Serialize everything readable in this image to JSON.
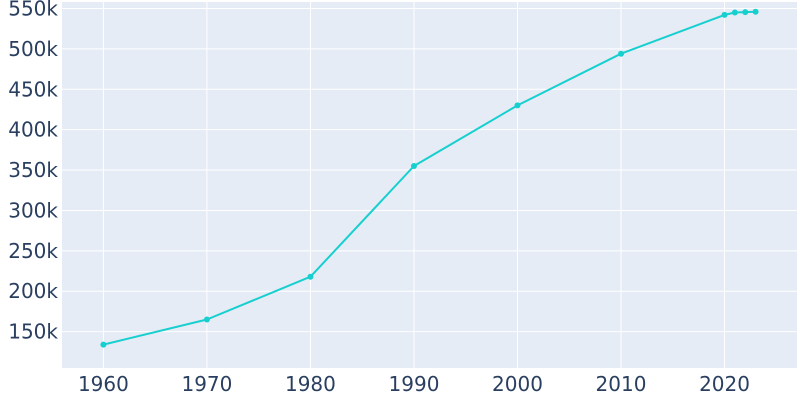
{
  "chart_data": {
    "type": "line",
    "title": "",
    "xlabel": "",
    "ylabel": "",
    "x": [
      1960,
      1970,
      1980,
      1990,
      2000,
      2010,
      2020,
      2021,
      2022,
      2023
    ],
    "series": [
      {
        "values": [
          134000,
          165000,
          218000,
          355000,
          430000,
          494000,
          542000,
          545000,
          545500,
          546000
        ]
      }
    ],
    "xlim": [
      1956,
      2027
    ],
    "ylim": [
      105000,
      558000
    ],
    "x_ticks": [
      1960,
      1970,
      1980,
      1990,
      2000,
      2010,
      2020
    ],
    "x_tick_labels": [
      "1960",
      "1970",
      "1980",
      "1990",
      "2000",
      "2010",
      "2020"
    ],
    "y_ticks": [
      150000,
      200000,
      250000,
      300000,
      350000,
      400000,
      450000,
      500000,
      550000
    ],
    "y_tick_labels": [
      "150k",
      "200k",
      "250k",
      "300k",
      "350k",
      "400k",
      "450k",
      "500k",
      "550k"
    ],
    "grid": true,
    "legend": false,
    "colors": {
      "plot_background": "#e5ecf6",
      "grid": "#ffffff",
      "line": "#17cfcf",
      "tick_text": "#2a3f5f"
    }
  }
}
